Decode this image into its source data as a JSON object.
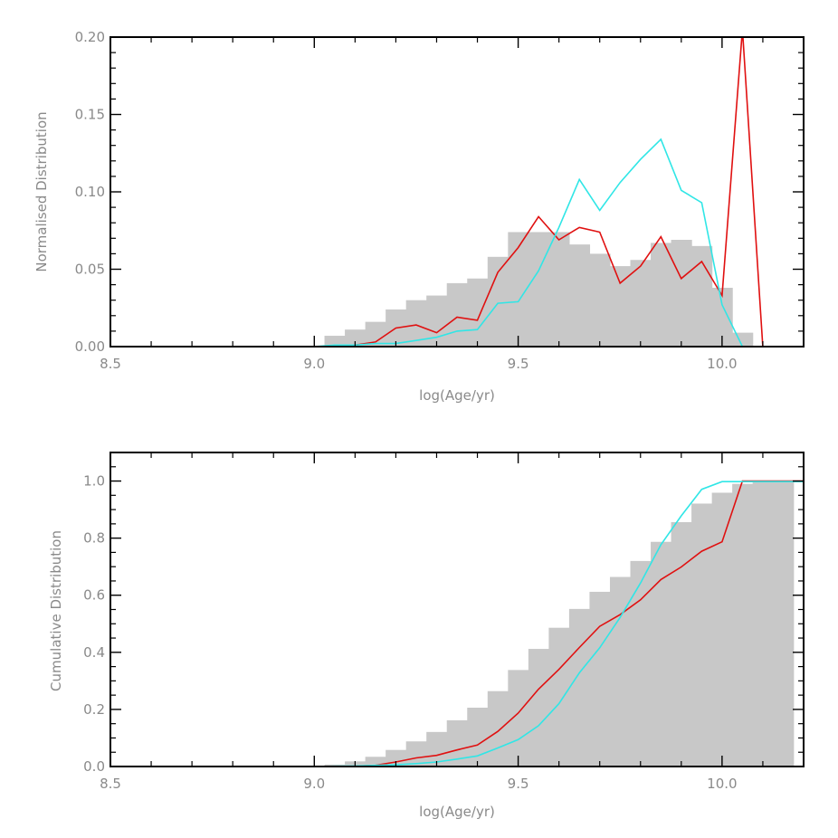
{
  "colors": {
    "histogram": "#c8c8c8",
    "red_line": "#e01010",
    "cyan_line": "#30e6e6",
    "frame": "#000000",
    "text": "#8a8a8a"
  },
  "chart_data": [
    {
      "type": "bar",
      "xlabel": "log(Age/yr)",
      "ylabel": "Normalised Distribution",
      "xlim": [
        8.5,
        10.2
      ],
      "ylim": [
        0,
        0.2
      ],
      "x_ticks": [
        8.5,
        9.0,
        9.5,
        10.0
      ],
      "x_tick_labels": [
        "8.5",
        "9.0",
        "9.5",
        "10.0"
      ],
      "y_ticks": [
        0,
        0.05,
        0.1,
        0.15,
        0.2
      ],
      "y_tick_labels": [
        "0.00",
        "0.05",
        "0.10",
        "0.15",
        "0.20"
      ],
      "grid": false,
      "series": [
        {
          "kind": "histogram",
          "bin_left": [
            9.025,
            9.075,
            9.125,
            9.175,
            9.225,
            9.275,
            9.325,
            9.375,
            9.425,
            9.475,
            9.525,
            9.575,
            9.625,
            9.675,
            9.725,
            9.775,
            9.825,
            9.875,
            9.925,
            9.975,
            10.025
          ],
          "bin_width": 0.05,
          "values": [
            0.007,
            0.011,
            0.016,
            0.024,
            0.03,
            0.033,
            0.041,
            0.044,
            0.058,
            0.074,
            0.074,
            0.074,
            0.066,
            0.06,
            0.052,
            0.056,
            0.067,
            0.069,
            0.065,
            0.038,
            0.009
          ]
        },
        {
          "kind": "line",
          "color_key": "red_line",
          "x": [
            8.5,
            9.0,
            9.05,
            9.1,
            9.15,
            9.2,
            9.25,
            9.3,
            9.35,
            9.4,
            9.45,
            9.5,
            9.55,
            9.6,
            9.65,
            9.7,
            9.75,
            9.8,
            9.85,
            9.9,
            9.95,
            10.0,
            10.05,
            10.1,
            10.2
          ],
          "values": [
            0.0,
            0.0,
            0.0,
            0.001,
            0.003,
            0.012,
            0.014,
            0.009,
            0.019,
            0.017,
            0.048,
            0.064,
            0.084,
            0.069,
            0.077,
            0.074,
            0.041,
            0.052,
            0.071,
            0.044,
            0.055,
            0.033,
            0.205,
            0.0,
            0.0
          ]
        },
        {
          "kind": "line",
          "color_key": "cyan_line",
          "x": [
            8.5,
            9.0,
            9.05,
            9.1,
            9.15,
            9.2,
            9.25,
            9.3,
            9.35,
            9.4,
            9.45,
            9.5,
            9.55,
            9.6,
            9.65,
            9.7,
            9.75,
            9.8,
            9.85,
            9.9,
            9.95,
            10.0,
            10.05,
            10.2
          ],
          "values": [
            0.0,
            0.0,
            0.001,
            0.001,
            0.002,
            0.002,
            0.004,
            0.006,
            0.01,
            0.011,
            0.028,
            0.029,
            0.049,
            0.077,
            0.108,
            0.088,
            0.106,
            0.121,
            0.134,
            0.101,
            0.093,
            0.027,
            0.0,
            0.0
          ]
        }
      ]
    },
    {
      "type": "area",
      "xlabel": "log(Age/yr)",
      "ylabel": "Cumulative Distribution",
      "xlim": [
        8.5,
        10.2
      ],
      "ylim": [
        0,
        1.1
      ],
      "x_ticks": [
        8.5,
        9.0,
        9.5,
        10.0
      ],
      "x_tick_labels": [
        "8.5",
        "9.0",
        "9.5",
        "10.0"
      ],
      "y_ticks": [
        0,
        0.2,
        0.4,
        0.6,
        0.8,
        1.0
      ],
      "y_tick_labels": [
        "0.0",
        "0.2",
        "0.4",
        "0.6",
        "0.8",
        "1.0"
      ],
      "grid": false,
      "series": [
        {
          "kind": "step",
          "bin_left": [
            9.025,
            9.075,
            9.125,
            9.175,
            9.225,
            9.275,
            9.325,
            9.375,
            9.425,
            9.475,
            9.525,
            9.575,
            9.625,
            9.675,
            9.725,
            9.775,
            9.825,
            9.875,
            9.925,
            9.975,
            10.025,
            10.075,
            10.125
          ],
          "bin_width": 0.05,
          "values": [
            0.007,
            0.018,
            0.034,
            0.058,
            0.088,
            0.121,
            0.162,
            0.206,
            0.264,
            0.338,
            0.412,
            0.486,
            0.552,
            0.612,
            0.664,
            0.72,
            0.787,
            0.856,
            0.921,
            0.959,
            0.99,
            1.0,
            1.0
          ]
        },
        {
          "kind": "line",
          "color_key": "red_line",
          "x": [
            8.5,
            9.0,
            9.05,
            9.1,
            9.15,
            9.2,
            9.25,
            9.3,
            9.35,
            9.4,
            9.45,
            9.5,
            9.55,
            9.6,
            9.65,
            9.7,
            9.75,
            9.8,
            9.85,
            9.9,
            9.95,
            10.0,
            10.05,
            10.2
          ],
          "values": [
            0.0,
            0.0,
            0.0,
            0.001,
            0.004,
            0.016,
            0.03,
            0.039,
            0.058,
            0.075,
            0.123,
            0.187,
            0.271,
            0.34,
            0.417,
            0.491,
            0.532,
            0.584,
            0.655,
            0.699,
            0.754,
            0.787,
            1.0,
            1.0
          ]
        },
        {
          "kind": "line",
          "color_key": "cyan_line",
          "x": [
            8.5,
            9.0,
            9.05,
            9.1,
            9.15,
            9.2,
            9.25,
            9.3,
            9.35,
            9.4,
            9.45,
            9.5,
            9.55,
            9.6,
            9.65,
            9.7,
            9.75,
            9.8,
            9.85,
            9.9,
            9.95,
            10.0,
            10.05,
            10.2
          ],
          "values": [
            0.0,
            0.0,
            0.001,
            0.002,
            0.004,
            0.006,
            0.01,
            0.016,
            0.026,
            0.037,
            0.065,
            0.094,
            0.143,
            0.22,
            0.328,
            0.416,
            0.522,
            0.643,
            0.777,
            0.878,
            0.971,
            0.998,
            0.998,
            0.998
          ]
        }
      ]
    }
  ]
}
